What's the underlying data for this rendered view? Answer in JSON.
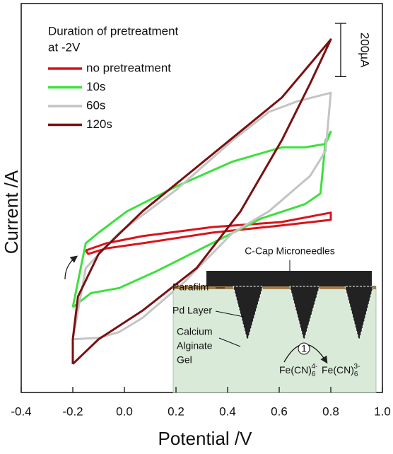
{
  "chart_data": {
    "type": "line",
    "x_label": "Potential /V",
    "y_label": "Current /A",
    "legend_title": [
      "Duration of pretreatment",
      "at -2V"
    ],
    "xlim": [
      -0.4,
      1.0
    ],
    "xticks": [
      -0.4,
      -0.2,
      {
        "value": 0,
        "label": "0.0"
      },
      0.2,
      0.4,
      0.6,
      0.8,
      {
        "value": 1,
        "label": "1.0"
      }
    ],
    "ylim": [
      0,
      1460
    ],
    "scale_bar": {
      "value": 200,
      "label": "200µA"
    },
    "series": [
      {
        "name": "no pretreatment",
        "color": "#d9141b",
        "x": [
          -0.15,
          -0.07,
          0.07,
          0.34,
          0.61,
          0.8,
          0.8,
          0.61,
          0.34,
          0.07,
          -0.07,
          -0.14,
          -0.15
        ],
        "y": [
          533,
          560,
          587,
          621,
          640,
          675,
          648,
          627,
          600,
          560,
          541,
          520,
          533
        ]
      },
      {
        "name": "10s",
        "color": "#3ee03e",
        "x": [
          -0.2,
          -0.13,
          -0.02,
          0.12,
          0.34,
          0.53,
          0.7,
          0.76,
          0.78,
          0.8,
          0.78,
          0.7,
          0.61,
          0.42,
          0.2,
          0.01,
          -0.1,
          -0.15,
          -0.2
        ],
        "y": [
          320,
          373,
          392,
          453,
          560,
          653,
          707,
          747,
          947,
          979,
          933,
          920,
          920,
          867,
          773,
          680,
          600,
          560,
          320
        ]
      },
      {
        "name": "60s",
        "color": "#c4c4c4",
        "x": [
          -0.2,
          -0.1,
          -0.02,
          0.07,
          0.23,
          0.42,
          0.56,
          0.72,
          0.78,
          0.8,
          0.67,
          0.56,
          0.42,
          0.2,
          -0.02,
          -0.15,
          -0.2
        ],
        "y": [
          200,
          205,
          227,
          280,
          413,
          600,
          680,
          813,
          907,
          1125,
          1093,
          1053,
          947,
          760,
          600,
          467,
          200
        ]
      },
      {
        "name": "120s",
        "color": "#7a1010",
        "x": [
          -0.2,
          -0.2,
          -0.18,
          -0.1,
          0.07,
          0.34,
          0.61,
          0.8,
          0.72,
          0.61,
          0.45,
          0.28,
          0.07,
          -0.1,
          -0.2
        ],
        "y": [
          107,
          200,
          360,
          520,
          680,
          893,
          1107,
          1325,
          1160,
          947,
          680,
          467,
          307,
          200,
          107
        ]
      }
    ]
  },
  "inset": {
    "title": "C-Cap Microneedles",
    "labels": [
      "Parafilm",
      "Pd Layer",
      "Calcium",
      "Alginate",
      "Gel"
    ],
    "step": "1",
    "species": [
      {
        "base": "Fe(CN)",
        "sub": "6",
        "sup": "4-"
      },
      {
        "base": "Fe(CN)",
        "sub": "6",
        "sup": "3-"
      }
    ]
  }
}
